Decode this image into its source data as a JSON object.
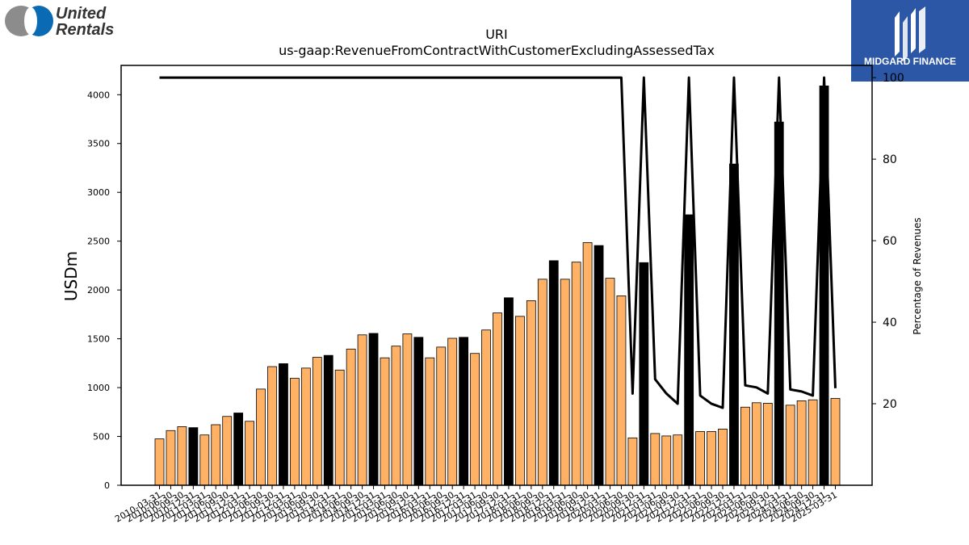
{
  "logos": {
    "left": {
      "line1": "United",
      "line2": "Rentals",
      "accent": "#0a6ab4",
      "grey": "#8c8c8c"
    },
    "right": {
      "text": "MIDGARD FINANCE",
      "background": "#2b57a6"
    }
  },
  "chart_data": {
    "type": "bar",
    "title": "URI",
    "subtitle": "us-gaap:RevenueFromContractWithCustomerExcludingAssessedTax",
    "ylabel": "USDm",
    "ylabel_right": "Percentage of Revenues",
    "ylim": [
      0,
      4300
    ],
    "ylim_right": [
      0,
      103
    ],
    "yticks": [
      0,
      500,
      1000,
      1500,
      2000,
      2500,
      3000,
      3500,
      4000
    ],
    "yticks_right": [
      20,
      40,
      60,
      80,
      100
    ],
    "colors": {
      "quarter": "#ffb266",
      "annual": "#000000",
      "line": "#000000"
    },
    "categories": [
      "2010-03-31",
      "2010-06-30",
      "2010-09-30",
      "2010-12-31",
      "2011-03-31",
      "2011-06-30",
      "2011-09-30",
      "2011-12-31",
      "2012-03-31",
      "2012-06-30",
      "2012-09-30",
      "2012-12-31",
      "2013-03-31",
      "2013-06-30",
      "2013-09-30",
      "2013-12-31",
      "2014-03-31",
      "2014-06-30",
      "2014-09-30",
      "2014-12-31",
      "2015-03-31",
      "2015-06-30",
      "2015-09-30",
      "2015-12-31",
      "2016-03-31",
      "2016-06-30",
      "2016-09-30",
      "2016-12-31",
      "2017-03-31",
      "2017-06-30",
      "2017-09-30",
      "2017-12-31",
      "2018-03-31",
      "2018-06-30",
      "2018-09-30",
      "2018-12-31",
      "2019-03-31",
      "2019-06-30",
      "2019-09-30",
      "2019-12-31",
      "2020-03-31",
      "2020-06-30",
      "2020-09-30",
      "2020-12-31",
      "2021-03-31",
      "2021-06-30",
      "2021-09-30",
      "2021-12-31",
      "2022-03-31",
      "2022-06-30",
      "2022-09-30",
      "2022-12-31",
      "2023-03-31",
      "2023-06-30",
      "2023-09-30",
      "2023-12-31",
      "2024-03-31",
      "2024-06-30",
      "2024-09-30",
      "2024-12-31",
      "2025-03-31"
    ],
    "series": [
      {
        "values": [
          475,
          560,
          600,
          590,
          515,
          620,
          705,
          740,
          655,
          985,
          1215,
          1245,
          1095,
          1200,
          1310,
          1330,
          1180,
          1395,
          1540,
          1555,
          1305,
          1425,
          1550,
          1515,
          1305,
          1415,
          1505,
          1515,
          1350,
          1590,
          1765,
          1920,
          1730,
          1890,
          2110,
          2300,
          2110,
          2285,
          2485,
          2455,
          2120,
          1940,
          485,
          2280,
          530,
          505,
          515,
          2770,
          550,
          550,
          575,
          3290,
          800,
          845,
          840,
          3720,
          820,
          865,
          875,
          4090,
          890
        ]
      },
      {
        "annual_flags": [
          0,
          0,
          0,
          1,
          0,
          0,
          0,
          1,
          0,
          0,
          0,
          1,
          0,
          0,
          0,
          1,
          0,
          0,
          0,
          1,
          0,
          0,
          0,
          1,
          0,
          0,
          0,
          1,
          0,
          0,
          0,
          1,
          0,
          0,
          0,
          1,
          0,
          0,
          0,
          1,
          0,
          0,
          0,
          1,
          0,
          0,
          0,
          1,
          0,
          0,
          0,
          1,
          0,
          0,
          0,
          1,
          0,
          0,
          0,
          1,
          0
        ]
      },
      {
        "percent_of_revenues": [
          100,
          100,
          100,
          100,
          100,
          100,
          100,
          100,
          100,
          100,
          100,
          100,
          100,
          100,
          100,
          100,
          100,
          100,
          100,
          100,
          100,
          100,
          100,
          100,
          100,
          100,
          100,
          100,
          100,
          100,
          100,
          100,
          100,
          100,
          100,
          100,
          100,
          100,
          100,
          100,
          100,
          100,
          22.5,
          100,
          26,
          22.5,
          20,
          100,
          22,
          20,
          19,
          100,
          24.5,
          24,
          22.5,
          100,
          23.5,
          23,
          22,
          100,
          23.8
        ]
      }
    ],
    "xtick_labels": [
      "2010-03-31",
      "2010-06-30",
      "2010-09-30",
      "2010-12-31",
      "2011-03-31",
      "2011-06-30",
      "2011-09-30",
      "2011-12-31",
      "2012-03-31",
      "2012-06-30",
      "2012-09-30",
      "2012-12-31",
      "2013-03-31",
      "2013-06-30",
      "2013-09-30",
      "2013-12-31",
      "2014-03-31",
      "2014-06-30",
      "2014-09-30",
      "2014-12-31",
      "2015-03-31",
      "2015-06-30",
      "2015-09-30",
      "2015-12-31",
      "2016-03-31",
      "2016-06-30",
      "2016-09-30",
      "2016-12-31",
      "2017-03-31",
      "2017-06-30",
      "2017-09-30",
      "2017-12-31",
      "2018-03-31",
      "2018-06-30",
      "2018-09-30",
      "2018-12-31",
      "2019-03-31",
      "2019-06-30",
      "2019-09-30",
      "2019-12-31",
      "2020-03-31",
      "2020-06-30",
      "2020-09-30",
      "2020-12-31",
      "2021-03-31",
      "2021-06-30",
      "2021-09-30",
      "2021-12-31",
      "2022-03-31",
      "2022-06-30",
      "2022-09-30",
      "2022-12-31",
      "2023-03-31",
      "2023-06-30",
      "2023-09-30",
      "2023-12-31",
      "2024-03-31",
      "2024-06-30",
      "2024-09-30",
      "2024-12-31",
      "2025-03-31"
    ]
  }
}
